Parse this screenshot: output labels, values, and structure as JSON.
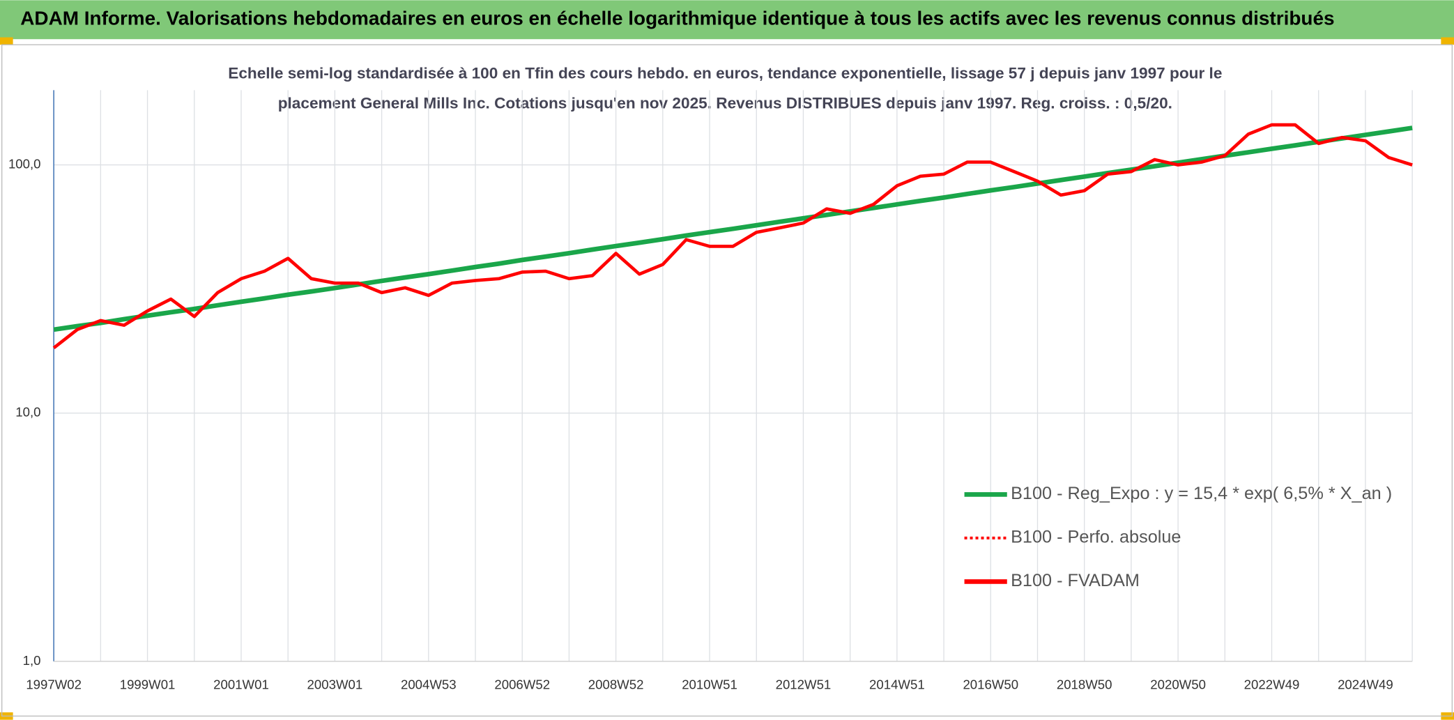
{
  "chart_data": {
    "type": "line",
    "header": "ADAM Informe. Valorisations hebdomadaires en euros en échelle logarithmique identique à tous les actifs avec les revenus connus distribués",
    "subtitle": [
      "Echelle semi-log standardisée à 100 en Tfin des cours hebdo. en euros, tendance exponentielle, lissage 57 j depuis janv 1997 pour le",
      "placement General Mills Inc. Cotations jusqu'en nov 2025. Revenus DISTRIBUES depuis janv 1997. Reg. croiss. : 0,5/20."
    ],
    "categories": [
      "1997W02",
      null,
      null,
      null,
      "1999W01",
      null,
      null,
      null,
      "2001W01",
      null,
      null,
      null,
      "2003W01",
      null,
      null,
      null,
      "2004W53",
      null,
      null,
      null,
      "2006W52",
      null,
      null,
      null,
      "2008W52",
      null,
      null,
      null,
      "2010W51",
      null,
      null,
      null,
      "2012W51",
      null,
      null,
      null,
      "2014W51",
      null,
      null,
      null,
      "2016W50",
      null,
      null,
      null,
      "2018W50",
      null,
      null,
      null,
      "2020W50",
      null,
      null,
      null,
      "2022W49",
      null,
      null,
      null,
      "2024W49",
      null,
      null
    ],
    "log_scale": true,
    "ylim": [
      1,
      200
    ],
    "yticks": [
      {
        "value": 1,
        "label": "1,0"
      },
      {
        "value": 10,
        "label": "10,0"
      },
      {
        "value": 100,
        "label": "100,0"
      }
    ],
    "grid": true,
    "legend": "bottom-right",
    "series": [
      {
        "name": "B100 - Reg_Expo : y = 15,4 * exp( 6,5% *  X_an )",
        "color": "#1aa64a",
        "dash": "solid",
        "values": [
          21.7,
          22.4,
          23.1,
          23.9,
          24.7,
          25.5,
          26.3,
          27.2,
          28.1,
          29.0,
          30.0,
          30.9,
          31.9,
          33.0,
          34.1,
          35.2,
          36.3,
          37.5,
          38.8,
          40.0,
          41.4,
          42.7,
          44.1,
          45.6,
          47.1,
          48.6,
          50.2,
          51.9,
          53.6,
          55.3,
          57.1,
          59.0,
          60.9,
          62.9,
          65.0,
          67.1,
          69.3,
          71.6,
          73.9,
          76.4,
          78.9,
          81.4,
          84.1,
          86.9,
          89.7,
          92.7,
          95.7,
          98.8,
          102.1,
          105.4,
          108.9,
          112.4,
          116.1,
          119.9,
          123.9,
          127.9,
          132.1,
          136.4,
          140.9
        ]
      },
      {
        "name": "B100 - Perfo. absolue",
        "color": "#ff0000",
        "dash": "dotted",
        "values": [
          null,
          null,
          null,
          null,
          null,
          null,
          null,
          null,
          null,
          null,
          null,
          null,
          null,
          null,
          null,
          null,
          null,
          null,
          null,
          null,
          null,
          null,
          null,
          null,
          null,
          null,
          null,
          null,
          null,
          null,
          null,
          null,
          null,
          null,
          null,
          null,
          null,
          null,
          null,
          null,
          null,
          null,
          null,
          null,
          null,
          null,
          null,
          null,
          null,
          null,
          null,
          null,
          null,
          null,
          null,
          null,
          null,
          null,
          null
        ]
      },
      {
        "name": "B100 - FVADAM",
        "color": "#ff0000",
        "dash": "solid",
        "values": [
          18.3,
          21.7,
          23.6,
          22.6,
          25.8,
          28.8,
          24.5,
          30.6,
          34.8,
          37.3,
          42,
          34.8,
          33.4,
          33.4,
          30.6,
          32,
          29.8,
          33.4,
          34.2,
          34.8,
          37,
          37.3,
          34.8,
          35.8,
          44,
          36.3,
          39.7,
          50,
          47,
          47,
          53.5,
          55.8,
          58.3,
          66.5,
          63.8,
          69.4,
          82.4,
          90,
          91.8,
          102.6,
          102.6,
          94,
          86,
          75.6,
          78.7,
          91.8,
          94,
          105,
          100,
          102.6,
          109,
          133,
          145,
          145,
          122,
          129,
          125,
          107,
          100
        ]
      }
    ]
  }
}
